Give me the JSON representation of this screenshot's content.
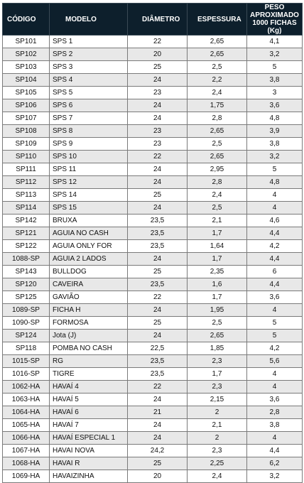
{
  "headers": {
    "codigo": "CÓDIGO",
    "modelo": "MODELO",
    "diametro": "DIÂMETRO",
    "espessura": "ESPESSURA",
    "peso": "PESO APROXIMADO 1000 FICHAS (Kg)"
  },
  "rows": [
    [
      "SP101",
      "SPS 1",
      "22",
      "2,65",
      "4,1"
    ],
    [
      "SP102",
      "SPS 2",
      "20",
      "2,65",
      "3,2"
    ],
    [
      "SP103",
      "SPS 3",
      "25",
      "2,5",
      "5"
    ],
    [
      "SP104",
      "SPS 4",
      "24",
      "2,2",
      "3,8"
    ],
    [
      "SP105",
      "SPS 5",
      "23",
      "2,4",
      "3"
    ],
    [
      "SP106",
      "SPS 6",
      "24",
      "1,75",
      "3,6"
    ],
    [
      "SP107",
      "SPS 7",
      "24",
      "2,8",
      "4,8"
    ],
    [
      "SP108",
      "SPS 8",
      "23",
      "2,65",
      "3,9"
    ],
    [
      "SP109",
      "SPS 9",
      "23",
      "2,5",
      "3,8"
    ],
    [
      "SP110",
      "SPS 10",
      "22",
      "2,65",
      "3,2"
    ],
    [
      "SP111",
      "SPS 11",
      "24",
      "2,95",
      "5"
    ],
    [
      "SP112",
      "SPS 12",
      "24",
      "2,8",
      "4,8"
    ],
    [
      "SP113",
      "SPS 14",
      "25",
      "2,4",
      "4"
    ],
    [
      "SP114",
      "SPS 15",
      "24",
      "2,5",
      "4"
    ],
    [
      "SP142",
      "BRUXA",
      "23,5",
      "2,1",
      "4,6"
    ],
    [
      "SP121",
      "AGUIA NO CASH",
      "23,5",
      "1,7",
      "4,4"
    ],
    [
      "SP122",
      "AGUIA ONLY FOR",
      "23,5",
      "1,64",
      "4,2"
    ],
    [
      "1088-SP",
      "AGUIA 2 LADOS",
      "24",
      "1,7",
      "4,4"
    ],
    [
      "SP143",
      "BULLDOG",
      "25",
      "2,35",
      "6"
    ],
    [
      "SP120",
      "CAVEIRA",
      "23,5",
      "1,6",
      "4,4"
    ],
    [
      "SP125",
      "GAVIÃO",
      "22",
      "1,7",
      "3,6"
    ],
    [
      "1089-SP",
      "FICHA H",
      "24",
      "1,95",
      "4"
    ],
    [
      "1090-SP",
      "FORMOSA",
      "25",
      "2,5",
      "5"
    ],
    [
      "SP124",
      "Jota (J)",
      "24",
      "2,65",
      "5"
    ],
    [
      "SP118",
      "POMBA NO CASH",
      "22,5",
      "1,85",
      "4,2"
    ],
    [
      "1015-SP",
      "RG",
      "23,5",
      "2,3",
      "5,6"
    ],
    [
      "1016-SP",
      "TIGRE",
      "23,5",
      "1,7",
      "4"
    ],
    [
      "1062-HA",
      "HAVAÍ 4",
      "22",
      "2,3",
      "4"
    ],
    [
      "1063-HA",
      "HAVAÍ 5",
      "24",
      "2,15",
      "3,6"
    ],
    [
      "1064-HA",
      "HAVAÍ 6",
      "21",
      "2",
      "2,8"
    ],
    [
      "1065-HA",
      "HAVAÍ 7",
      "24",
      "2,1",
      "3,8"
    ],
    [
      "1066-HA",
      "HAVAÍ ESPECIAL 1",
      "24",
      "2",
      "4"
    ],
    [
      "1067-HA",
      "HAVAI NOVA",
      "24,2",
      "2,3",
      "4,4"
    ],
    [
      "1068-HA",
      "HAVAI R",
      "25",
      "2,25",
      "6,2"
    ],
    [
      "1069-HA",
      "HAVAIZINHA",
      "20",
      "2,4",
      "3,2"
    ]
  ]
}
